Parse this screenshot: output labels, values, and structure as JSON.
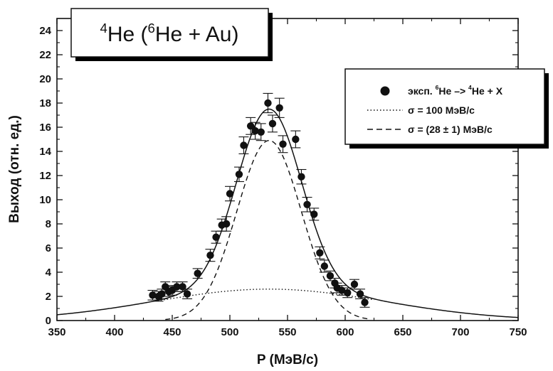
{
  "chart_data": {
    "type": "scatter",
    "title": {
      "sup1": "4",
      "part1": "He (",
      "sup2": "6",
      "part2": "He + Au)"
    },
    "xlabel": "P (МэВ/с)",
    "ylabel": "Выход (отн. ед.)",
    "xlim": [
      350,
      750
    ],
    "ylim": [
      0,
      25
    ],
    "xticks": [
      "350",
      "400",
      "450",
      "500",
      "550",
      "600",
      "650",
      "700",
      "750"
    ],
    "yticks": [
      "0",
      "2",
      "4",
      "6",
      "8",
      "10",
      "12",
      "14",
      "16",
      "18",
      "20",
      "22",
      "24"
    ],
    "grid": false,
    "legend_position": "top-right",
    "legend": {
      "points": {
        "prefix": "эксп. ",
        "sup_a": "6",
        "mid": "He –> ",
        "sup_b": "4",
        "suffix": "He + X"
      },
      "dotted": "σ = 100 МэВ/с",
      "dashed": "σ = (28 ± 1) МэВ/с"
    },
    "points": [
      {
        "x": 433,
        "y": 2.1,
        "err": 0.4
      },
      {
        "x": 438,
        "y": 2.0,
        "err": 0.4
      },
      {
        "x": 441,
        "y": 2.2,
        "err": 0.4
      },
      {
        "x": 444,
        "y": 2.8,
        "err": 0.4
      },
      {
        "x": 447,
        "y": 2.4,
        "err": 0.4
      },
      {
        "x": 450,
        "y": 2.5,
        "err": 0.4
      },
      {
        "x": 454,
        "y": 2.8,
        "err": 0.4
      },
      {
        "x": 459,
        "y": 2.8,
        "err": 0.4
      },
      {
        "x": 463,
        "y": 2.2,
        "err": 0.4
      },
      {
        "x": 472,
        "y": 3.9,
        "err": 0.4
      },
      {
        "x": 483,
        "y": 5.4,
        "err": 0.5
      },
      {
        "x": 488,
        "y": 6.9,
        "err": 0.5
      },
      {
        "x": 493,
        "y": 7.9,
        "err": 0.5
      },
      {
        "x": 497,
        "y": 8.0,
        "err": 0.6
      },
      {
        "x": 500,
        "y": 10.5,
        "err": 0.6
      },
      {
        "x": 508,
        "y": 12.1,
        "err": 0.6
      },
      {
        "x": 512,
        "y": 14.5,
        "err": 0.7
      },
      {
        "x": 518,
        "y": 16.1,
        "err": 0.7
      },
      {
        "x": 522,
        "y": 15.7,
        "err": 0.7
      },
      {
        "x": 527,
        "y": 15.6,
        "err": 0.7
      },
      {
        "x": 533,
        "y": 18.0,
        "err": 0.8
      },
      {
        "x": 537,
        "y": 16.3,
        "err": 0.7
      },
      {
        "x": 543,
        "y": 17.6,
        "err": 0.8
      },
      {
        "x": 546,
        "y": 14.6,
        "err": 0.7
      },
      {
        "x": 557,
        "y": 15.0,
        "err": 0.7
      },
      {
        "x": 562,
        "y": 11.9,
        "err": 0.6
      },
      {
        "x": 567,
        "y": 9.6,
        "err": 0.6
      },
      {
        "x": 573,
        "y": 8.8,
        "err": 0.5
      },
      {
        "x": 578,
        "y": 5.6,
        "err": 0.5
      },
      {
        "x": 582,
        "y": 4.5,
        "err": 0.5
      },
      {
        "x": 587,
        "y": 3.7,
        "err": 0.4
      },
      {
        "x": 591,
        "y": 3.1,
        "err": 0.4
      },
      {
        "x": 593,
        "y": 2.7,
        "err": 0.4
      },
      {
        "x": 597,
        "y": 2.5,
        "err": 0.4
      },
      {
        "x": 602,
        "y": 2.3,
        "err": 0.4
      },
      {
        "x": 608,
        "y": 3.0,
        "err": 0.4
      },
      {
        "x": 613,
        "y": 2.2,
        "err": 0.4
      },
      {
        "x": 617,
        "y": 1.5,
        "err": 0.4
      }
    ],
    "fits": {
      "center": 534,
      "narrow_sigma": 28,
      "narrow_amplitude": 14.9,
      "wide_sigma": 100,
      "wide_amplitude": 2.6
    },
    "colors": {
      "foreground": "#111111",
      "background": "#ffffff",
      "shadow": "#000000"
    }
  }
}
